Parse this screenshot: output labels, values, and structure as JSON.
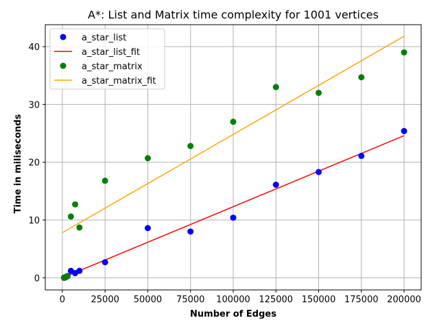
{
  "chart_data": {
    "type": "scatter",
    "title": "A*: List and Matrix time complexity for 1001 vertices",
    "xlabel": "Number of Edges",
    "ylabel": "Time in miliseconds",
    "xlim": [
      -10000,
      210000
    ],
    "ylim": [
      -2.1,
      43.8
    ],
    "xticks": [
      0,
      25000,
      50000,
      75000,
      100000,
      125000,
      150000,
      175000,
      200000
    ],
    "yticks": [
      0,
      10,
      20,
      30,
      40
    ],
    "grid": true,
    "legend_position": "top-left",
    "series": [
      {
        "name": "a_star_list",
        "kind": "scatter",
        "color": "#0000ff",
        "points": [
          [
            1000,
            0.0
          ],
          [
            1500,
            0.05
          ],
          [
            2000,
            0.1
          ],
          [
            2500,
            0.2
          ],
          [
            3000,
            0.3
          ],
          [
            5000,
            1.2
          ],
          [
            7500,
            0.8
          ],
          [
            10000,
            1.2
          ],
          [
            25000,
            2.7
          ],
          [
            50000,
            8.6
          ],
          [
            75000,
            8.0
          ],
          [
            100000,
            10.4
          ],
          [
            125000,
            16.1
          ],
          [
            150000,
            18.3
          ],
          [
            175000,
            21.1
          ],
          [
            200000,
            25.4
          ]
        ]
      },
      {
        "name": "a_star_list_fit",
        "kind": "line",
        "color": "#ff0000",
        "points": [
          [
            0,
            0.0
          ],
          [
            200000,
            24.6
          ]
        ]
      },
      {
        "name": "a_star_matrix",
        "kind": "scatter",
        "color": "#008000",
        "points": [
          [
            1000,
            0.05
          ],
          [
            1500,
            0.1
          ],
          [
            2000,
            0.15
          ],
          [
            2500,
            0.2
          ],
          [
            3000,
            0.25
          ],
          [
            5000,
            10.6
          ],
          [
            7500,
            12.7
          ],
          [
            10000,
            8.7
          ],
          [
            25000,
            16.8
          ],
          [
            50000,
            20.7
          ],
          [
            75000,
            22.8
          ],
          [
            100000,
            27.0
          ],
          [
            125000,
            33.0
          ],
          [
            150000,
            32.0
          ],
          [
            175000,
            34.7
          ],
          [
            200000,
            39.0
          ]
        ]
      },
      {
        "name": "a_star_matrix_fit",
        "kind": "line",
        "color": "#ffa500",
        "points": [
          [
            0,
            7.8
          ],
          [
            200000,
            41.8
          ]
        ]
      }
    ]
  }
}
